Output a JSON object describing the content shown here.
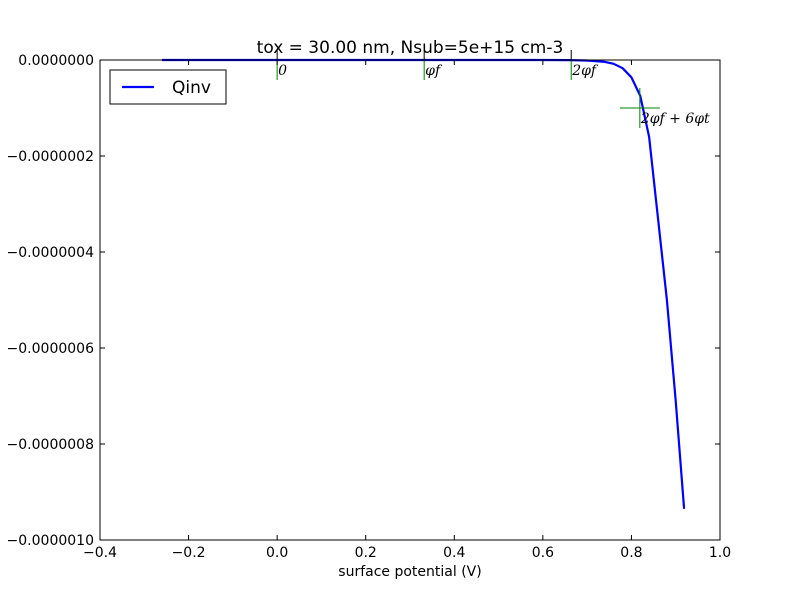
{
  "chart_data": {
    "type": "line",
    "title": "tox = 30.00 nm, Nsub=5e+15 cm-3",
    "xlabel": "surface potential (V)",
    "ylabel": "",
    "xlim": [
      -0.4,
      1.0
    ],
    "ylim": [
      -1e-06,
      0.0
    ],
    "xticks": [
      -0.4,
      -0.2,
      0.0,
      0.2,
      0.4,
      0.6,
      0.8,
      1.0
    ],
    "xtick_labels": [
      "−0.4",
      "−0.2",
      "0.0",
      "0.2",
      "0.4",
      "0.6",
      "0.8",
      "1.0"
    ],
    "yticks": [
      0.0,
      -2e-07,
      -4e-07,
      -6e-07,
      -8e-07,
      -1e-06
    ],
    "ytick_labels": [
      "0.0000000",
      "−0.0000002",
      "−0.0000004",
      "−0.0000006",
      "−0.0000008",
      "−0.0000010"
    ],
    "grid": false,
    "legend_position": "top-left",
    "series": [
      {
        "name": "Qinv",
        "color": "#0000ff",
        "x": [
          -0.26,
          0.0,
          0.2,
          0.4,
          0.6,
          0.66,
          0.7,
          0.74,
          0.76,
          0.78,
          0.8,
          0.82,
          0.84,
          0.86,
          0.88,
          0.9,
          0.919
        ],
        "y": [
          0.0,
          0.0,
          0.0,
          0.0,
          0.0,
          -2e-10,
          -1e-09,
          -4e-09,
          -8e-09,
          -1.7e-08,
          -3.6e-08,
          -7.5e-08,
          -1.6e-07,
          -3.3e-07,
          -5e-07,
          -7.1e-07,
          -9.35e-07
        ]
      }
    ],
    "annotations": [
      {
        "text": "0",
        "x": 0.0,
        "y": 0.0,
        "marker_color": "#008000"
      },
      {
        "text": "φf",
        "x": 0.332,
        "y": 0.0,
        "marker_color": "#008000"
      },
      {
        "text": "2φf",
        "x": 0.664,
        "y": 0.0,
        "marker_color": "#008000"
      },
      {
        "text": "2φf + 6φt",
        "x": 0.819,
        "y": -1e-07,
        "marker_color": "#008000"
      }
    ]
  }
}
